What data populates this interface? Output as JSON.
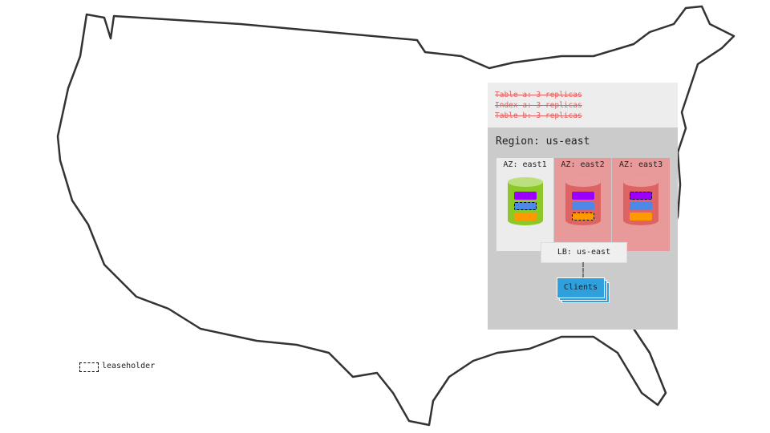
{
  "replicas": [
    "Table a: 3 replicas",
    "Index a: 3 replicas",
    "Table b: 3 replicas"
  ],
  "region": "Region: us-east",
  "zones": [
    {
      "label": "AZ: east1",
      "bg": "#ececec",
      "cyl": "#8cc926",
      "cyltop": "#bde07e",
      "leaseholder": 1
    },
    {
      "label": "AZ: east2",
      "bg": "#e89a9a",
      "cyl": "#de6464",
      "cyltop": "#ea9a9a",
      "leaseholder": 2
    },
    {
      "label": "AZ: east3",
      "bg": "#e89a9a",
      "cyl": "#de6464",
      "cyltop": "#ea9a9a",
      "leaseholder": 0
    }
  ],
  "range_colors": [
    "#9b00ff",
    "#4d88e8",
    "#ff9900"
  ],
  "lb": "LB: us-east",
  "clients": "Clients",
  "legend": "leaseholder"
}
